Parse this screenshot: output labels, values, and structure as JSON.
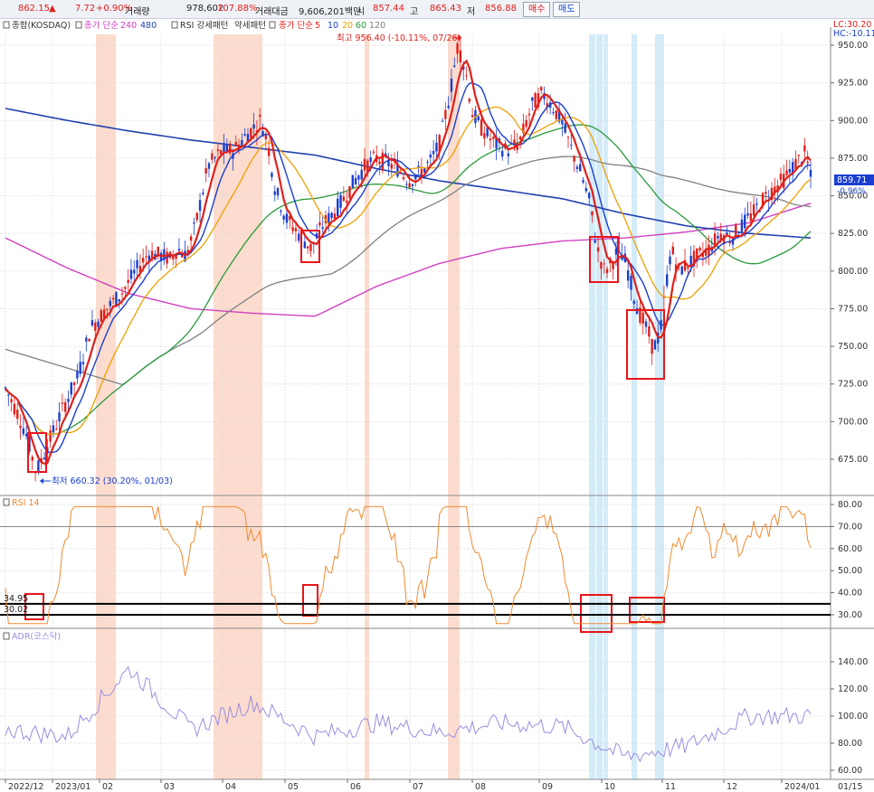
{
  "topbar": {
    "price": "862.15",
    "arrow": "▲",
    "change": "7.72",
    "change_pct": "+0.90%",
    "volume_label": "거래량",
    "volume": "978,602",
    "volume_ratio": "107.88%",
    "trade_value_label": "거래대금",
    "trade_value": "9,606,201백만",
    "open_label": "시",
    "open": "857.44",
    "high_label": "고",
    "high": "865.43",
    "low_label": "저",
    "low": "856.88",
    "buy_label": "매수",
    "sell_label": "매도"
  },
  "price_panel": {
    "title": "종합(KOSDAQ)",
    "ma_long_label": "종가 단순",
    "ma_long_a": "240",
    "ma_long_b": "480",
    "rsi_pattern_label": "RSI 강세패턴",
    "weak_pattern_label": "약세패턴",
    "ma_short_label": "종가 단순",
    "ma_short_periods": [
      "5",
      "10",
      "20",
      "60",
      "120"
    ],
    "lc_label": "LC:30.20",
    "hc_label": "HC:-10.11",
    "high_annotation": "최고 956.40 (-10.11%, 07/26)",
    "low_annotation": "최저 660.32 (30.20%, 01/03)",
    "last_price_tag": "859.71",
    "last_change_tag": "-0.96%",
    "y_ticks": [
      "950.00",
      "925.00",
      "900.00",
      "875.00",
      "850.00",
      "825.00",
      "800.00",
      "775.00",
      "750.00",
      "725.00",
      "700.00",
      "675.00"
    ]
  },
  "rsi_panel": {
    "title": "RSI 14",
    "level_a": "34.95",
    "level_b": "30.02",
    "y_ticks": [
      "80.00",
      "70.00",
      "60.00",
      "50.00",
      "40.00",
      "30.00"
    ]
  },
  "adr_panel": {
    "title": "ADR(코스닥)",
    "y_ticks": [
      "140.00",
      "120.00",
      "100.00",
      "80.00",
      "60.00"
    ]
  },
  "x_axis": {
    "labels": [
      "2022/12",
      "2023/01",
      "02",
      "03",
      "04",
      "05",
      "06",
      "07",
      "08",
      "09",
      "10",
      "11",
      "12",
      "2024/01"
    ],
    "right_label": "01/15"
  },
  "colors": {
    "candle_up": "#e0201b",
    "candle_down": "#1a3fd0",
    "ma5": "#e0201b",
    "ma10": "#1a3fd0",
    "ma20": "#f0a000",
    "ma60": "#2a9a3a",
    "ma120": "#808080",
    "ma240": "#d040c0",
    "ma480": "#2040b0",
    "rsi": "#f08a30",
    "adr": "#9a8ee0",
    "highlight_red": "#fbd3c2",
    "highlight_blue": "#cfeaf8",
    "box": "#e8161b"
  },
  "chart_data": [
    {
      "type": "candlestick",
      "title": "종합(KOSDAQ)",
      "ylim": [
        645,
        962
      ],
      "x": [
        "2022-12",
        "2023-01",
        "2023-02",
        "2023-03",
        "2023-04",
        "2023-05",
        "2023-06",
        "2023-07",
        "2023-08",
        "2023-09",
        "2023-10",
        "2023-11",
        "2023-12",
        "2024-01"
      ],
      "series": [
        {
          "name": "close (approx.)",
          "values": [
            722,
            679,
            790,
            808,
            905,
            812,
            870,
            885,
            930,
            880,
            790,
            785,
            830,
            862
          ]
        },
        {
          "name": "240",
          "values": [
            822,
            802,
            785,
            775,
            772,
            770,
            790,
            805,
            815,
            820,
            822,
            826,
            832,
            845
          ]
        },
        {
          "name": "480",
          "values": [
            908,
            900,
            893,
            887,
            882,
            877,
            868,
            860,
            854,
            848,
            838,
            830,
            825,
            822
          ]
        }
      ],
      "annotations": [
        "최고 956.40 (-10.11%, 07/26)",
        "최저 660.32 (30.20%, 01/03)"
      ]
    },
    {
      "type": "line",
      "title": "RSI 14",
      "ylim": [
        25,
        82
      ],
      "series": [
        {
          "name": "RSI 14",
          "values": [
            42,
            35,
            68,
            62,
            72,
            35,
            55,
            62,
            70,
            55,
            32,
            33,
            60,
            58
          ]
        }
      ],
      "reference_lines": [
        34.95,
        30.02,
        70
      ]
    },
    {
      "type": "line",
      "title": "ADR(코스닥)",
      "ylim": [
        55,
        155
      ],
      "series": [
        {
          "name": "ADR(코스닥)",
          "values": [
            90,
            85,
            135,
            90,
            110,
            85,
            95,
            88,
            95,
            92,
            70,
            78,
            100,
            100
          ]
        }
      ]
    }
  ]
}
